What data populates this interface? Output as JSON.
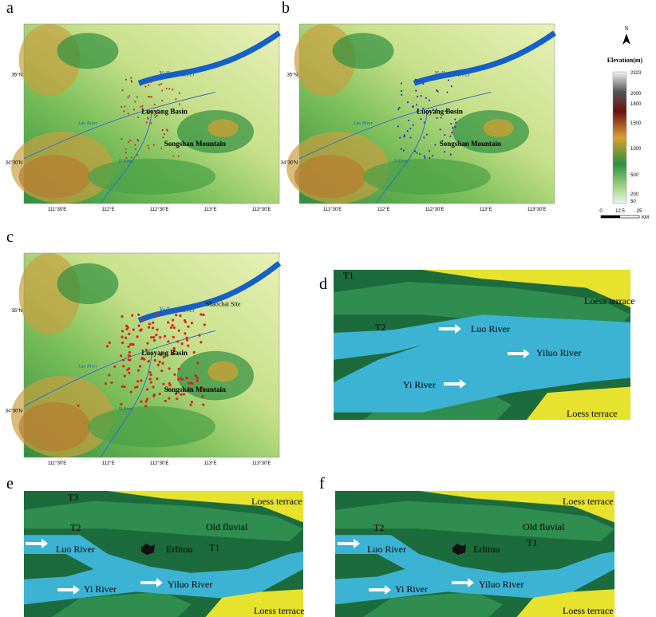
{
  "map_axes": {
    "lon": [
      "111°30'E",
      "112°E",
      "112°30'E",
      "113°E",
      "113°30'E"
    ],
    "lat": [
      "35°N",
      "34°30'N"
    ]
  },
  "maps": [
    {
      "letter": "a",
      "labels": [
        "Yellow River",
        "Luoyang Basin",
        "Songshan Mountain",
        "Luo River",
        "Yi River"
      ]
    },
    {
      "letter": "b",
      "labels": [
        "Yellow River",
        "Luoyang Basin",
        "Songshan Mountain",
        "Luo River",
        "Yi River"
      ]
    },
    {
      "letter": "c",
      "labels": [
        "Yellow River",
        "Luoyang Basin",
        "Songshan Mountain",
        "Luo River",
        "Yi River",
        "Shaochai Site"
      ]
    }
  ],
  "legend": {
    "north": "N",
    "title": "Elevation(m)",
    "ticks": [
      "2323",
      "2000",
      "1800",
      "1500",
      "1000",
      "500",
      "200",
      "50"
    ],
    "scale": [
      "0",
      "12.5",
      "25"
    ],
    "unit": "KM"
  },
  "diagrams": [
    {
      "letter": "d",
      "labels": [
        "T1",
        "T2",
        "Loess terrace",
        "Luo River",
        "Yiluo River",
        "Yi River",
        "Loess terrace"
      ]
    },
    {
      "letter": "e",
      "labels": [
        "T3",
        "T2",
        "Loess terrace",
        "Old fluvial",
        "T1",
        "Luo River",
        "Erlitou",
        "Yi River",
        "Yiluo River",
        "Loess terrace"
      ]
    },
    {
      "letter": "f",
      "labels": [
        "T2",
        "Loess terrace",
        "Old fluvial",
        "T1",
        "Luo River",
        "Erlitou",
        "Yi River",
        "Yiluo River",
        "Loess terrace"
      ]
    }
  ]
}
